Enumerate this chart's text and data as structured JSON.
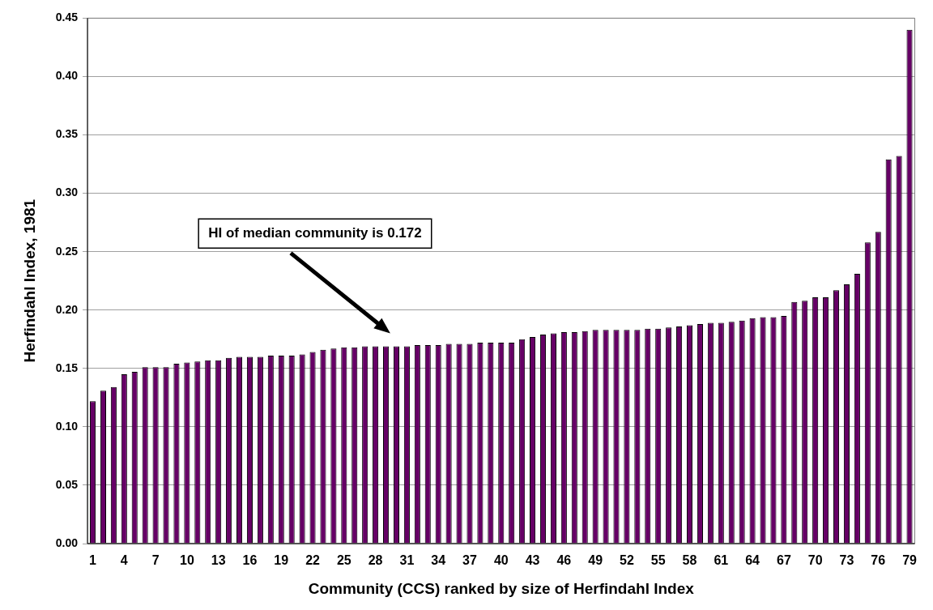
{
  "chart_data": {
    "type": "bar",
    "xlabel": "Community (CCS) ranked by size of Herfindahl Index",
    "ylabel": "Herfindahl Index, 1981",
    "categories": [
      "1",
      null,
      null,
      "4",
      null,
      null,
      "7",
      null,
      null,
      "10",
      null,
      null,
      "13",
      null,
      null,
      "16",
      null,
      null,
      "19",
      null,
      null,
      "22",
      null,
      null,
      "25",
      null,
      null,
      "28",
      null,
      null,
      "31",
      null,
      null,
      "34",
      null,
      null,
      "37",
      null,
      null,
      "40",
      null,
      null,
      "43",
      null,
      null,
      "46",
      null,
      null,
      "49",
      null,
      null,
      "52",
      null,
      null,
      "55",
      null,
      null,
      "58",
      null,
      null,
      "61",
      null,
      null,
      "64",
      null,
      null,
      "67",
      null,
      null,
      "70",
      null,
      null,
      "73",
      null,
      null,
      "76",
      null,
      null,
      "79"
    ],
    "values": [
      0.122,
      0.131,
      0.134,
      0.145,
      0.147,
      0.151,
      0.151,
      0.151,
      0.154,
      0.155,
      0.156,
      0.157,
      0.157,
      0.159,
      0.16,
      0.16,
      0.16,
      0.161,
      0.161,
      0.161,
      0.162,
      0.164,
      0.166,
      0.167,
      0.168,
      0.168,
      0.169,
      0.169,
      0.169,
      0.169,
      0.169,
      0.17,
      0.17,
      0.17,
      0.171,
      0.171,
      0.171,
      0.172,
      0.172,
      0.172,
      0.172,
      0.175,
      0.177,
      0.179,
      0.18,
      0.181,
      0.181,
      0.182,
      0.183,
      0.183,
      0.183,
      0.183,
      0.183,
      0.184,
      0.184,
      0.185,
      0.186,
      0.187,
      0.188,
      0.189,
      0.189,
      0.19,
      0.191,
      0.193,
      0.194,
      0.194,
      0.195,
      0.207,
      0.208,
      0.211,
      0.211,
      0.217,
      0.222,
      0.231,
      0.258,
      0.267,
      0.329,
      0.332,
      0.44
    ],
    "color": "#660066",
    "ylim": [
      0,
      0.45
    ],
    "yticks": [
      {
        "value": 0,
        "label": "0.00"
      },
      {
        "value": 0.05,
        "label": "0.05"
      },
      {
        "value": 0.1,
        "label": "0.10"
      },
      {
        "value": 0.15,
        "label": "0.15"
      },
      {
        "value": 0.2,
        "label": "0.20"
      },
      {
        "value": 0.25,
        "label": "0.25"
      },
      {
        "value": 0.3,
        "label": "0.30"
      },
      {
        "value": 0.35,
        "label": "0.35"
      },
      {
        "value": 0.4,
        "label": "0.40"
      },
      {
        "value": 0.45,
        "label": "0.45"
      }
    ],
    "grid": "y",
    "annotations": [
      "HI of median community is 0.172"
    ]
  }
}
